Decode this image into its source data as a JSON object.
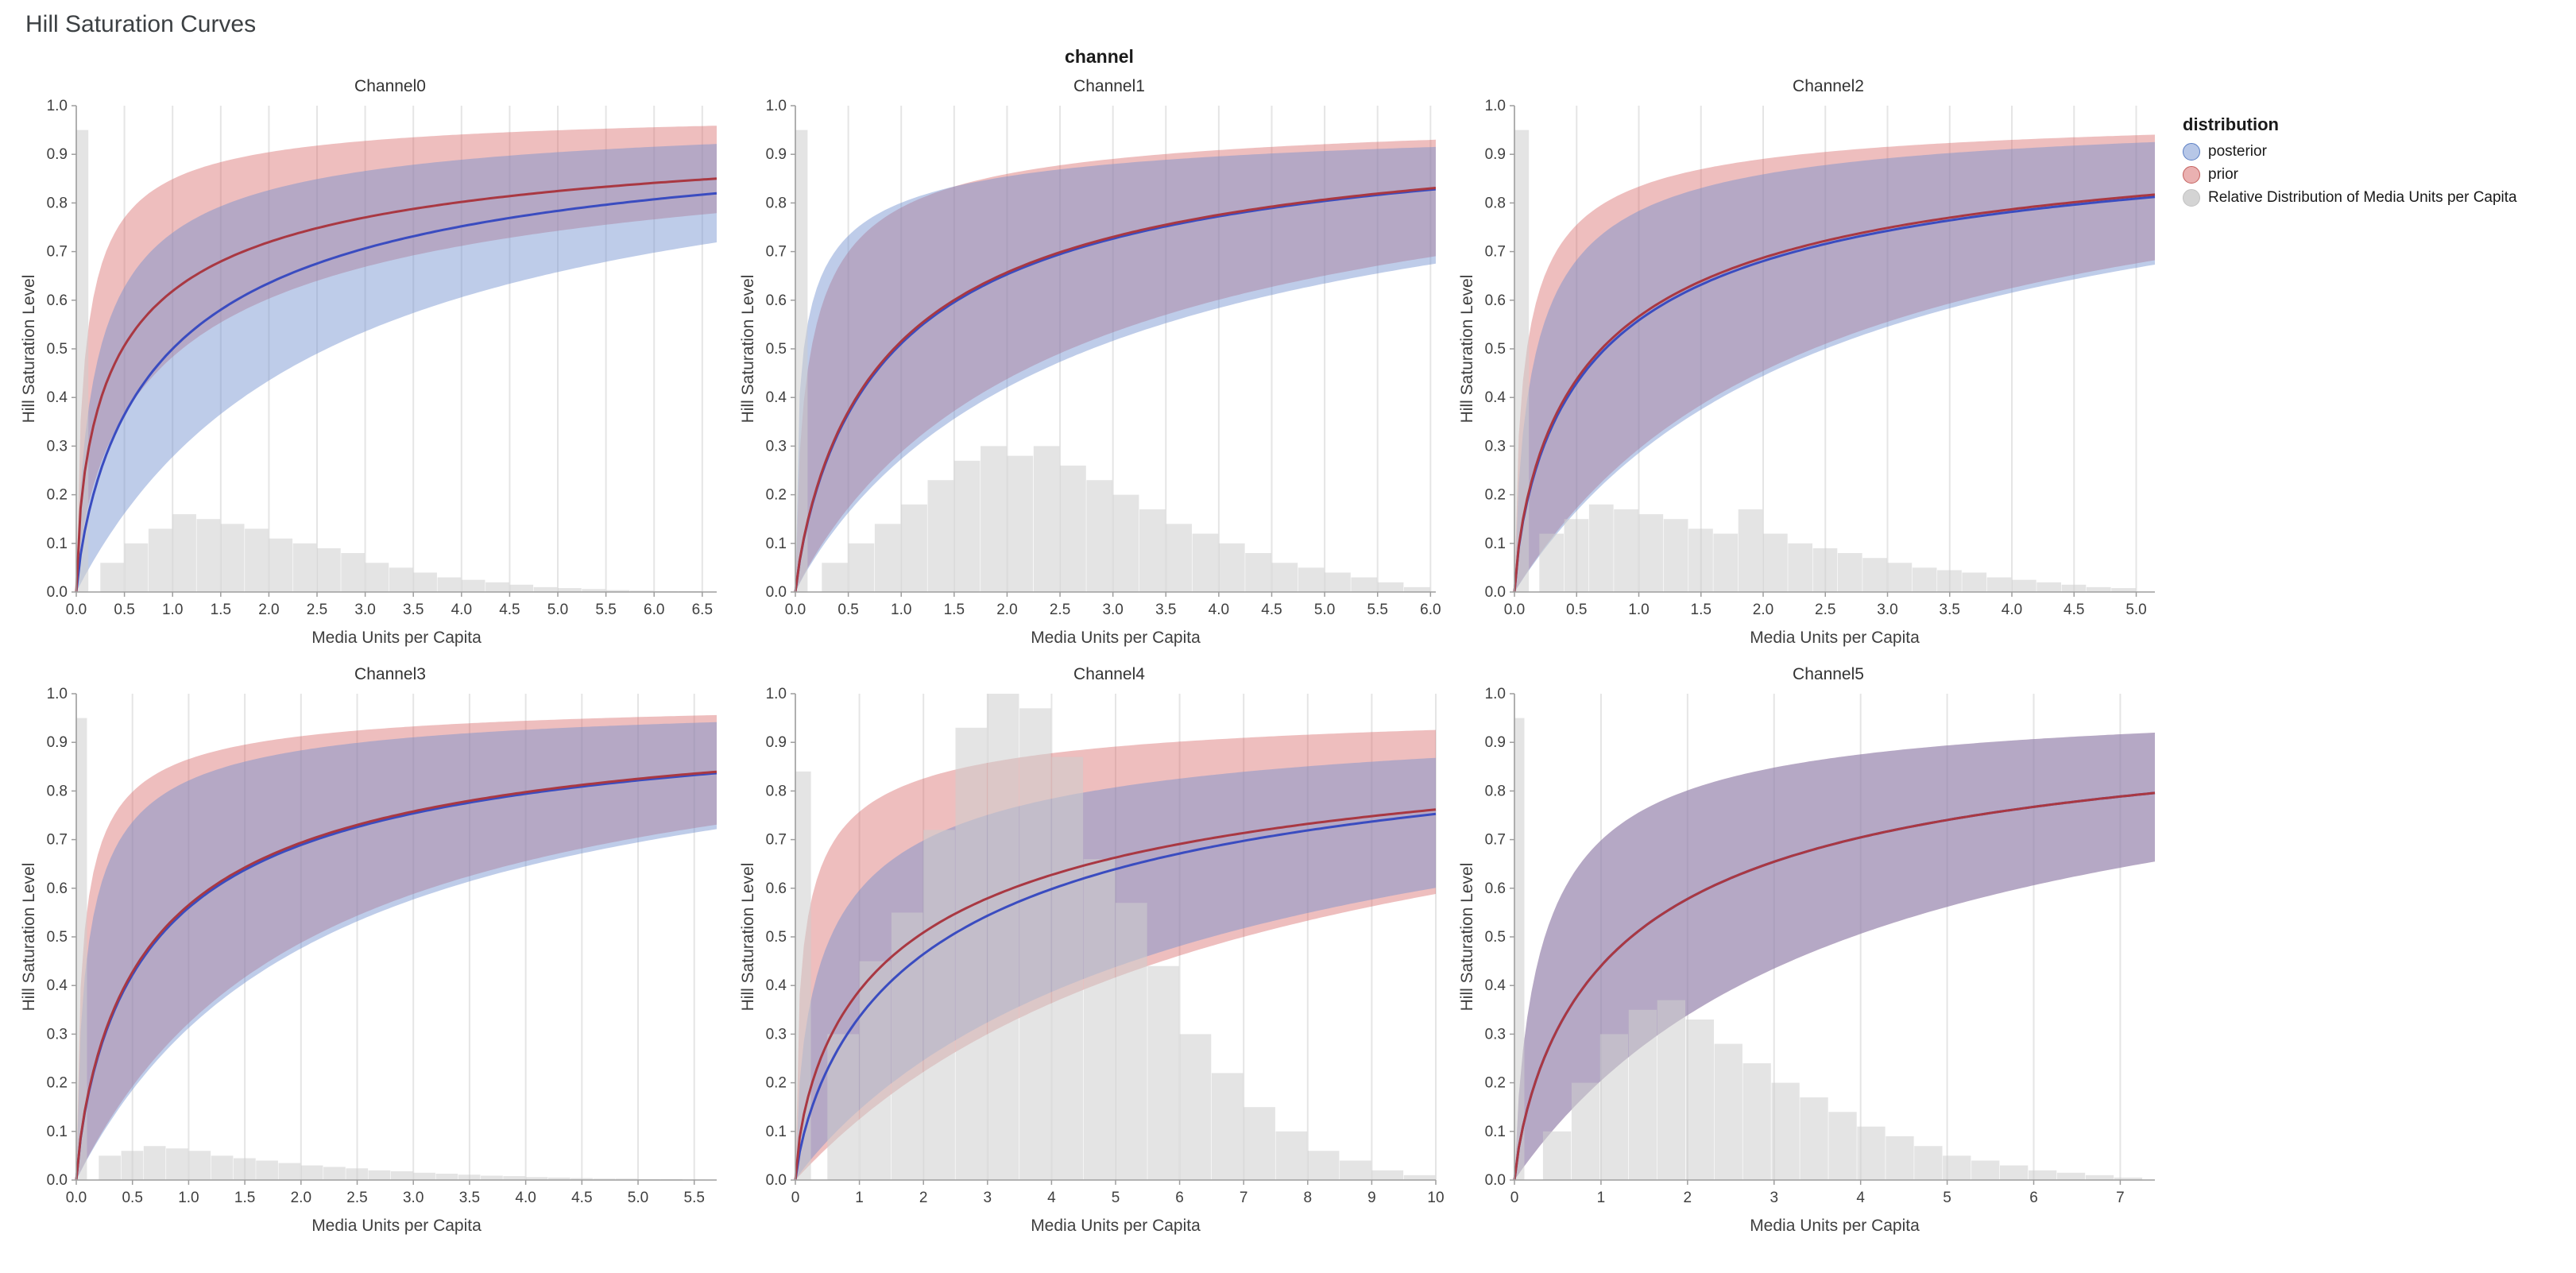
{
  "page_title": "Hill Saturation Curves",
  "facet_header": "channel",
  "axes": {
    "x_label": "Media Units per Capita",
    "y_label": "Hill Saturation Level",
    "y_ticks": [
      0.0,
      0.1,
      0.2,
      0.3,
      0.4,
      0.5,
      0.6,
      0.7,
      0.8,
      0.9,
      1.0
    ],
    "y_tick_decimals": 1,
    "y_range": [
      0,
      1
    ]
  },
  "legend": {
    "title": "distribution",
    "items": [
      {
        "name": "posterior",
        "label": "posterior",
        "fill": "rgba(111,143,207,0.5)",
        "stroke": "#5b7fc4"
      },
      {
        "name": "prior",
        "label": "prior",
        "fill": "rgba(214,100,100,0.5)",
        "stroke": "#c4605e"
      },
      {
        "name": "media-distribution",
        "label": "Relative Distribution of Media Units per Capita",
        "fill": "rgba(205,205,205,0.85)",
        "stroke": "#c2c2c2"
      }
    ]
  },
  "style": {
    "posterior_line": "#3a4cc0",
    "posterior_band": "rgba(111,143,207,0.45)",
    "prior_line": "#a93842",
    "prior_band": "rgba(214,100,100,0.42)",
    "histogram_fill": "rgba(205,205,205,0.55)",
    "grid_color": "#e5e5e5",
    "axis_color": "#9e9e9e",
    "text_color": "#3f3f3f"
  },
  "chart_data": [
    {
      "type": "line",
      "name": "Channel0",
      "x_max": 6.65,
      "x_ticks": [
        0,
        0.5,
        1,
        1.5,
        2,
        2.5,
        3,
        3.5,
        4,
        4.5,
        5,
        5.5,
        6,
        6.5
      ],
      "x_tick_decimals": 1,
      "series": [
        {
          "name": "posterior",
          "mean": {
            "k": 1.0,
            "s": 0.8
          },
          "lower": {
            "k": 2.6,
            "s": 1.0
          },
          "upper": {
            "k": 0.25,
            "s": 0.75
          },
          "y_at_xmax": 0.82
        },
        {
          "name": "prior",
          "mean": {
            "k": 0.48,
            "s": 0.66
          },
          "lower": {
            "k": 1.1,
            "s": 0.7
          },
          "upper": {
            "k": 0.1,
            "s": 0.75
          },
          "y_at_xmax": 0.85
        }
      ],
      "histogram": {
        "bin_width": 0.25,
        "spike_width": 0.13,
        "heights": [
          0.95,
          0.06,
          0.1,
          0.13,
          0.16,
          0.15,
          0.14,
          0.13,
          0.11,
          0.1,
          0.09,
          0.08,
          0.06,
          0.05,
          0.04,
          0.03,
          0.025,
          0.02,
          0.015,
          0.01,
          0.008,
          0.006,
          0.004,
          0.003,
          0.002,
          0.002
        ]
      }
    },
    {
      "type": "line",
      "name": "Channel1",
      "x_max": 6.05,
      "x_ticks": [
        0,
        0.5,
        1,
        1.5,
        2,
        2.5,
        3,
        3.5,
        4,
        4.5,
        5,
        5.5,
        6
      ],
      "x_tick_decimals": 1,
      "series": [
        {
          "name": "posterior",
          "mean": {
            "k": 0.95,
            "s": 0.85
          },
          "lower": {
            "k": 2.8,
            "s": 0.95
          },
          "upper": {
            "k": 0.08,
            "s": 0.55
          },
          "y_at_xmax": 0.8
        },
        {
          "name": "prior",
          "mean": {
            "k": 0.93,
            "s": 0.85
          },
          "lower": {
            "k": 2.6,
            "s": 0.95
          },
          "upper": {
            "k": 0.15,
            "s": 0.7
          },
          "y_at_xmax": 0.8
        }
      ],
      "histogram": {
        "bin_width": 0.25,
        "spike_width": 0.12,
        "heights": [
          0.95,
          0.06,
          0.1,
          0.14,
          0.18,
          0.23,
          0.27,
          0.3,
          0.28,
          0.3,
          0.26,
          0.23,
          0.2,
          0.17,
          0.14,
          0.12,
          0.1,
          0.08,
          0.06,
          0.05,
          0.04,
          0.03,
          0.02,
          0.01
        ]
      }
    },
    {
      "type": "line",
      "name": "Channel2",
      "x_max": 5.15,
      "x_ticks": [
        0,
        0.5,
        1,
        1.5,
        2,
        2.5,
        3,
        3.5,
        4,
        4.5,
        5
      ],
      "x_tick_decimals": 1,
      "series": [
        {
          "name": "posterior",
          "mean": {
            "k": 0.73,
            "s": 0.75
          },
          "lower": {
            "k": 2.5,
            "s": 1.0
          },
          "upper": {
            "k": 0.18,
            "s": 0.75
          },
          "y_at_xmax": 0.81
        },
        {
          "name": "prior",
          "mean": {
            "k": 0.7,
            "s": 0.75
          },
          "lower": {
            "k": 2.4,
            "s": 1.0
          },
          "upper": {
            "k": 0.1,
            "s": 0.7
          },
          "y_at_xmax": 0.82
        }
      ],
      "histogram": {
        "bin_width": 0.2,
        "spike_width": 0.12,
        "heights": [
          0.95,
          0.12,
          0.15,
          0.18,
          0.17,
          0.16,
          0.15,
          0.13,
          0.12,
          0.17,
          0.12,
          0.1,
          0.09,
          0.08,
          0.07,
          0.06,
          0.05,
          0.045,
          0.04,
          0.03,
          0.025,
          0.02,
          0.015,
          0.01,
          0.008
        ]
      }
    },
    {
      "type": "line",
      "name": "Channel3",
      "x_max": 5.7,
      "x_ticks": [
        0,
        0.5,
        1,
        1.5,
        2,
        2.5,
        3,
        3.5,
        4,
        4.5,
        5,
        5.5
      ],
      "x_tick_decimals": 1,
      "series": [
        {
          "name": "posterior",
          "mean": {
            "k": 0.74,
            "s": 0.8
          },
          "lower": {
            "k": 2.2,
            "s": 1.0
          },
          "upper": {
            "k": 0.12,
            "s": 0.72
          },
          "y_at_xmax": 0.84
        },
        {
          "name": "prior",
          "mean": {
            "k": 0.72,
            "s": 0.8
          },
          "lower": {
            "k": 2.1,
            "s": 1.0
          },
          "upper": {
            "k": 0.07,
            "s": 0.7
          },
          "y_at_xmax": 0.84
        }
      ],
      "histogram": {
        "bin_width": 0.2,
        "spike_width": 0.1,
        "heights": [
          0.95,
          0.05,
          0.06,
          0.07,
          0.065,
          0.06,
          0.05,
          0.045,
          0.04,
          0.035,
          0.03,
          0.027,
          0.024,
          0.02,
          0.018,
          0.015,
          0.013,
          0.011,
          0.009,
          0.008,
          0.006,
          0.005,
          0.004,
          0.003,
          0.003,
          0.002,
          0.002,
          0.001
        ]
      }
    },
    {
      "type": "line",
      "name": "Channel4",
      "x_max": 10.0,
      "x_ticks": [
        0,
        1,
        2,
        3,
        4,
        5,
        6,
        7,
        8,
        9,
        10
      ],
      "x_tick_decimals": 0,
      "series": [
        {
          "name": "posterior",
          "mean": {
            "k": 2.4,
            "s": 0.78
          },
          "lower": {
            "k": 6.5,
            "s": 0.95
          },
          "upper": {
            "k": 0.55,
            "s": 0.65
          },
          "y_at_xmax": 0.75
        },
        {
          "name": "prior",
          "mean": {
            "k": 1.9,
            "s": 0.7
          },
          "lower": {
            "k": 7.0,
            "s": 1.0
          },
          "upper": {
            "k": 0.15,
            "s": 0.6
          },
          "y_at_xmax": 0.76
        }
      ],
      "histogram": {
        "bin_width": 0.5,
        "spike_width": 0.25,
        "heights": [
          0.84,
          0.3,
          0.45,
          0.55,
          0.72,
          0.93,
          1.0,
          0.97,
          0.87,
          0.66,
          0.57,
          0.44,
          0.3,
          0.22,
          0.15,
          0.1,
          0.06,
          0.04,
          0.02,
          0.01
        ]
      }
    },
    {
      "type": "line",
      "name": "Channel5",
      "x_max": 7.4,
      "x_ticks": [
        0,
        1,
        2,
        3,
        4,
        5,
        6,
        7
      ],
      "x_tick_decimals": 0,
      "series": [
        {
          "name": "posterior",
          "mean": {
            "k": 1.35,
            "s": 0.8
          },
          "lower": {
            "k": 3.9,
            "s": 1.0
          },
          "upper": {
            "k": 0.35,
            "s": 0.8
          },
          "y_at_xmax": 0.8
        },
        {
          "name": "prior",
          "mean": {
            "k": 1.35,
            "s": 0.8
          },
          "lower": {
            "k": 3.9,
            "s": 1.0
          },
          "upper": {
            "k": 0.35,
            "s": 0.8
          },
          "y_at_xmax": 0.8
        }
      ],
      "histogram": {
        "bin_width": 0.33,
        "spike_width": 0.12,
        "heights": [
          0.95,
          0.1,
          0.2,
          0.3,
          0.35,
          0.37,
          0.33,
          0.28,
          0.24,
          0.2,
          0.17,
          0.14,
          0.11,
          0.09,
          0.07,
          0.05,
          0.04,
          0.03,
          0.02,
          0.015,
          0.01,
          0.005
        ]
      }
    }
  ]
}
